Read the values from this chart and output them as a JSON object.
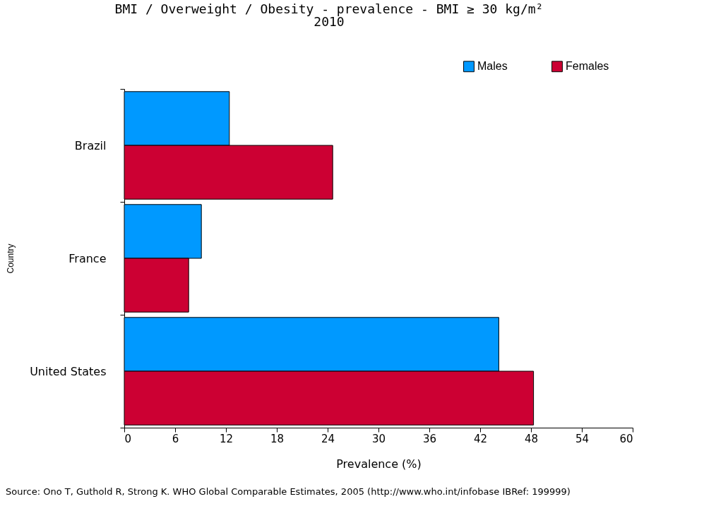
{
  "chart_data": {
    "type": "bar",
    "orientation": "horizontal",
    "title": "BMI / Overweight / Obesity - prevalence - BMI ≥ 30 kg/m²",
    "subtitle": "2010",
    "xlabel": "Prevalence (%)",
    "ylabel": "Country",
    "categories": [
      "Brazil",
      "France",
      "United States"
    ],
    "series": [
      {
        "name": "Males",
        "color": "#0099ff",
        "values": [
          12.4,
          9.1,
          44.2
        ]
      },
      {
        "name": "Females",
        "color": "#cc0033",
        "values": [
          24.6,
          7.6,
          48.3
        ]
      }
    ],
    "xlim": [
      0,
      60
    ],
    "xticks": [
      0,
      6,
      12,
      18,
      24,
      30,
      36,
      42,
      48,
      54,
      60
    ],
    "grid": false,
    "legend": "top right",
    "annotations": [
      "Source: Ono T, Guthold R, Strong K. WHO Global Comparable Estimates, 2005  (http://www.who.int/infobase IBRef: 199999)"
    ]
  }
}
